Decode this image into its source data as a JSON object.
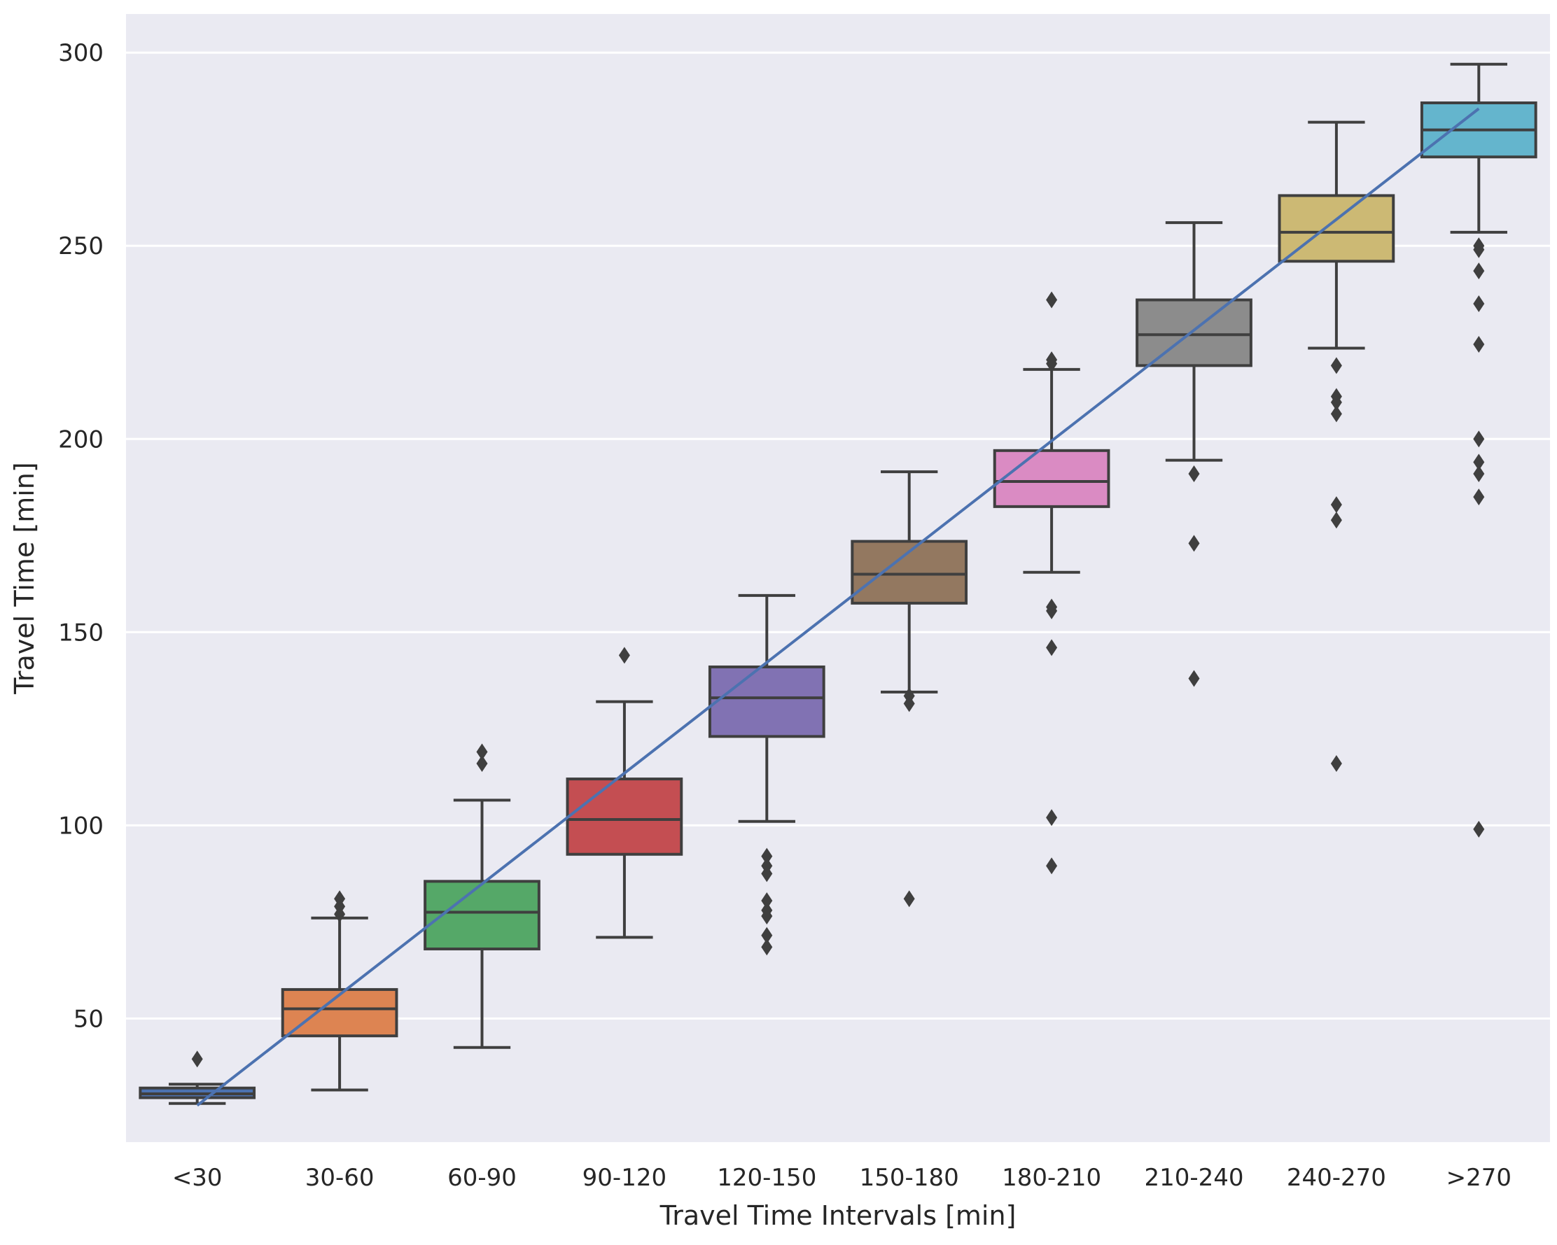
{
  "chart_data": {
    "type": "box",
    "title": "",
    "xlabel": "Travel Time Intervals [min]",
    "ylabel": "Travel Time [min]",
    "ylim": [
      18,
      310
    ],
    "yticks": [
      50,
      100,
      150,
      200,
      250,
      300
    ],
    "ytick_labels": [
      "50",
      "100",
      "150",
      "200",
      "250",
      "300"
    ],
    "grid": true,
    "background": "#eaeaf2",
    "grid_color": "#ffffff",
    "line_color": "#4c72b0",
    "edge_color": "#3f3f3f",
    "categories": [
      "<30",
      "30-60",
      "60-90",
      "90-120",
      "120-150",
      "150-180",
      "180-210",
      "210-240",
      "240-270",
      ">270"
    ],
    "boxes": [
      {
        "label": "<30",
        "color": "#4c72b0",
        "whisker_low": 28,
        "q1": 29.5,
        "median": 30.5,
        "q3": 32,
        "whisker_high": 33,
        "outliers": [
          39.5
        ]
      },
      {
        "label": "30-60",
        "color": "#dd8452",
        "whisker_low": 31.5,
        "q1": 45.5,
        "median": 52.5,
        "q3": 57.5,
        "whisker_high": 76,
        "outliers": [
          77,
          79,
          81
        ]
      },
      {
        "label": "60-90",
        "color": "#55a868",
        "whisker_low": 42.5,
        "q1": 68,
        "median": 77.5,
        "q3": 85.5,
        "whisker_high": 106.5,
        "outliers": [
          116,
          119
        ]
      },
      {
        "label": "90-120",
        "color": "#c44e52",
        "whisker_low": 71,
        "q1": 92.5,
        "median": 101.5,
        "q3": 112,
        "whisker_high": 132,
        "outliers": [
          144
        ]
      },
      {
        "label": "120-150",
        "color": "#8172b3",
        "whisker_low": 101,
        "q1": 123,
        "median": 133,
        "q3": 141,
        "whisker_high": 159.5,
        "outliers": [
          68.5,
          71.5,
          76.5,
          78,
          80.5,
          87.5,
          89.5,
          92
        ]
      },
      {
        "label": "150-180",
        "color": "#937860",
        "whisker_low": 134.5,
        "q1": 157.5,
        "median": 165,
        "q3": 173.5,
        "whisker_high": 191.5,
        "outliers": [
          81,
          131.5,
          133.5
        ]
      },
      {
        "label": "180-210",
        "color": "#da8bc3",
        "whisker_low": 165.5,
        "q1": 182.5,
        "median": 189,
        "q3": 197,
        "whisker_high": 218,
        "outliers": [
          89.5,
          102,
          146,
          155.5,
          156.5,
          219.5,
          220.5,
          236
        ]
      },
      {
        "label": "210-240",
        "color": "#8c8c8c",
        "whisker_low": 194.5,
        "q1": 219,
        "median": 227,
        "q3": 236,
        "whisker_high": 256,
        "outliers": [
          138,
          173,
          191
        ]
      },
      {
        "label": "240-270",
        "color": "#ccb974",
        "whisker_low": 223.5,
        "q1": 246,
        "median": 253.5,
        "q3": 263,
        "whisker_high": 282,
        "outliers": [
          116,
          179,
          183,
          206.5,
          209.5,
          211,
          219
        ]
      },
      {
        "label": ">270",
        "color": "#64b5cd",
        "whisker_low": 253.5,
        "q1": 273,
        "median": 280,
        "q3": 287,
        "whisker_high": 297,
        "outliers": [
          99,
          185,
          191,
          194,
          200,
          224.5,
          235,
          243.5,
          249,
          250
        ]
      }
    ],
    "trend_line": {
      "name": "trend",
      "x": [
        "<30",
        ">270"
      ],
      "y": [
        27.5,
        285.5
      ]
    }
  }
}
